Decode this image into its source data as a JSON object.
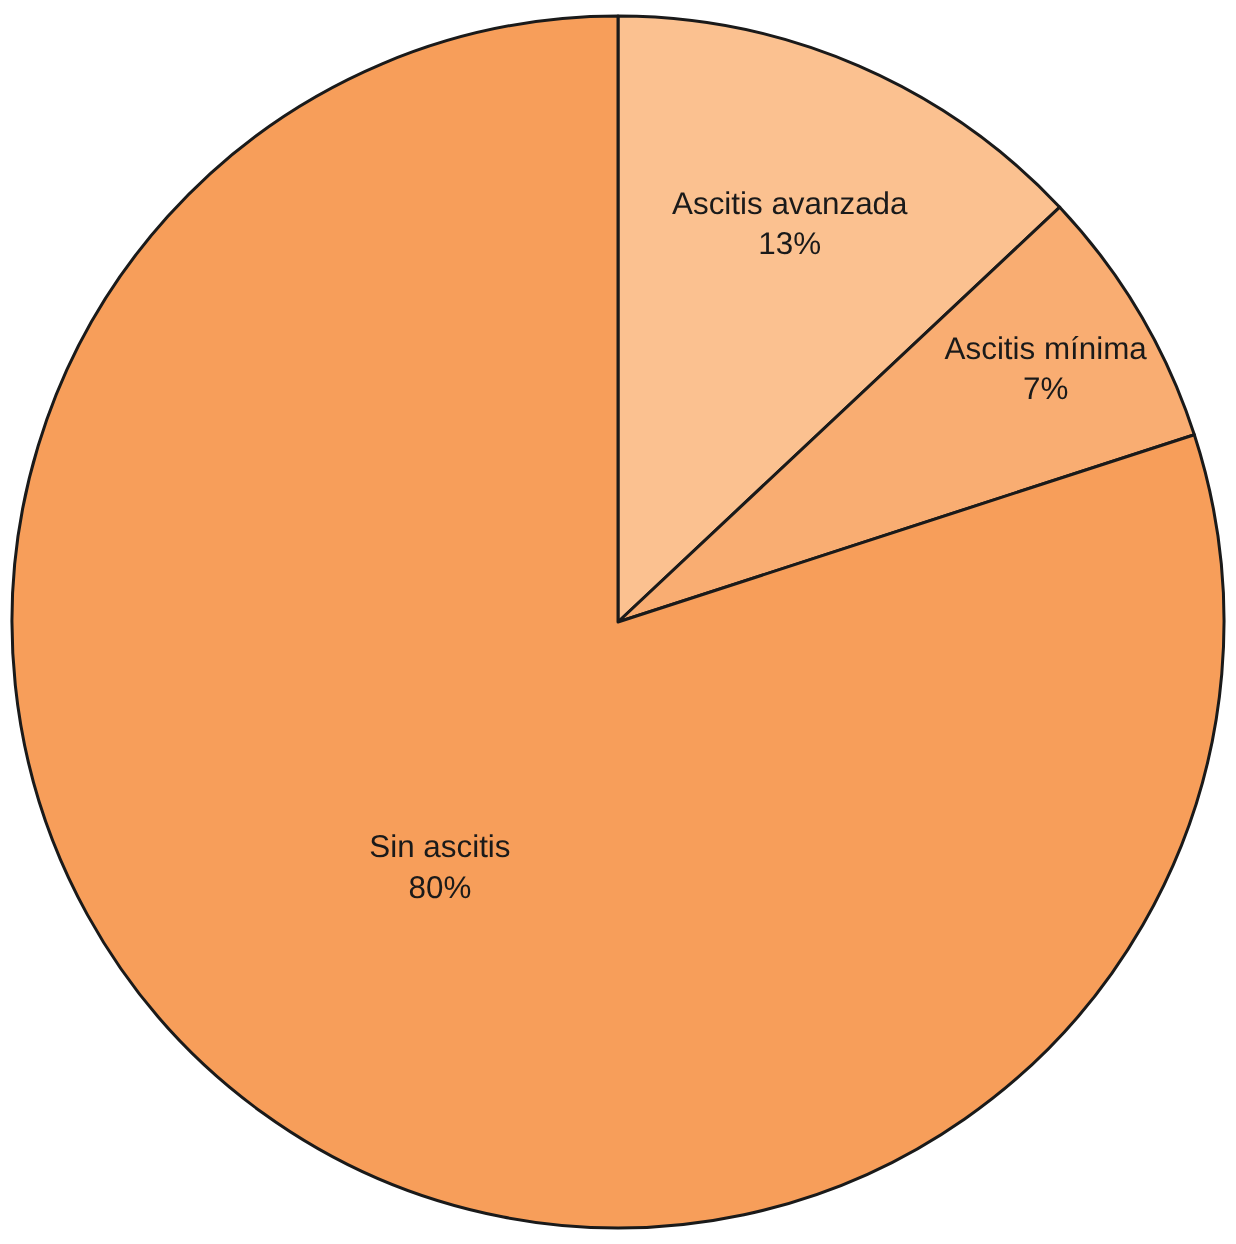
{
  "chart_data": {
    "type": "pie",
    "categories": [
      "Ascitis avanzada",
      "Ascitis mínima",
      "Sin ascitis"
    ],
    "values": [
      13,
      7,
      80
    ],
    "colors": [
      "#fbc190",
      "#f9ad72",
      "#f79e5a"
    ],
    "value_labels": [
      "13%",
      "7%",
      "80%"
    ],
    "legend": false
  }
}
